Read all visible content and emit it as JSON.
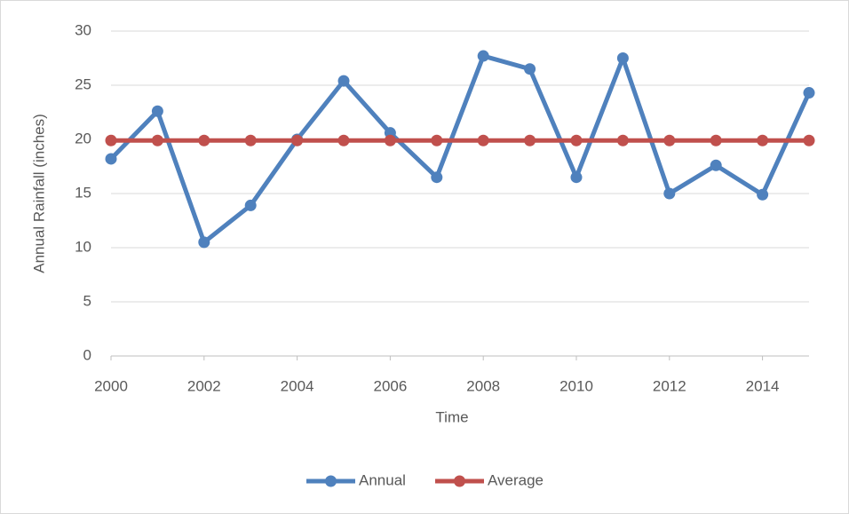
{
  "chart_data": {
    "type": "line",
    "x": [
      2000,
      2001,
      2002,
      2003,
      2004,
      2005,
      2006,
      2007,
      2008,
      2009,
      2010,
      2011,
      2012,
      2013,
      2014,
      2015
    ],
    "series": [
      {
        "name": "Annual",
        "color": "#4f81bd",
        "values": [
          18.2,
          22.6,
          10.5,
          13.9,
          20.0,
          25.4,
          20.6,
          16.5,
          27.7,
          26.5,
          16.5,
          27.5,
          15.0,
          17.6,
          14.9,
          24.3
        ]
      },
      {
        "name": "Average",
        "color": "#c0504d",
        "values": [
          19.9,
          19.9,
          19.9,
          19.9,
          19.9,
          19.9,
          19.9,
          19.9,
          19.9,
          19.9,
          19.9,
          19.9,
          19.9,
          19.9,
          19.9,
          19.9
        ]
      }
    ],
    "xlabel": "Time",
    "ylabel": "Annual Rainfall (inches)",
    "xlim": [
      2000,
      2015
    ],
    "xticks": [
      2000,
      2002,
      2004,
      2006,
      2008,
      2010,
      2012,
      2014
    ],
    "ylim": [
      0,
      30
    ],
    "yticks": [
      0,
      5,
      10,
      15,
      20,
      25,
      30
    ],
    "grid": true,
    "legend": "bottom"
  }
}
